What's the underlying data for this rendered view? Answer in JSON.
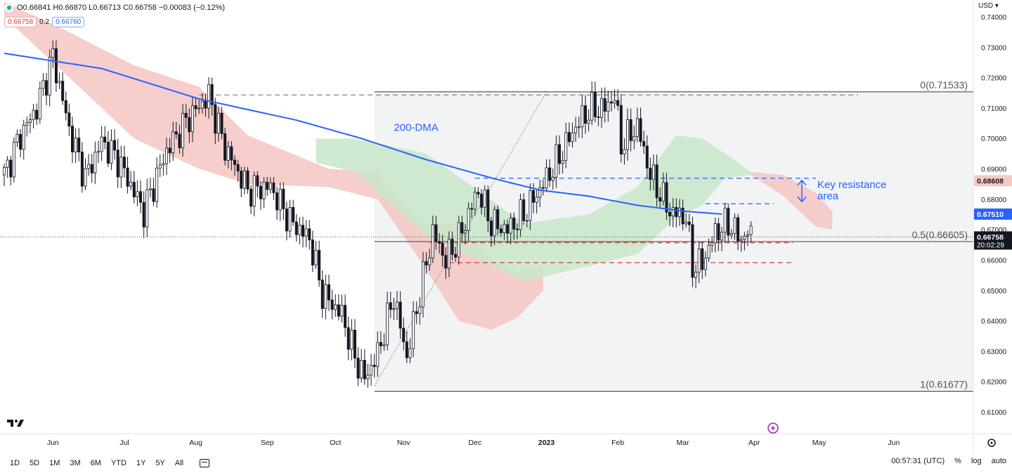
{
  "header": {
    "ohlc_text": "O0.66841 H0.66870 L0.66713 C0.66758 −0.00083 (−0.12%)",
    "ind_value_1": "0.66758",
    "ind_param": "0.2",
    "ind_value_2": "0.66760",
    "currency": "USD"
  },
  "colors": {
    "candle": "#131722",
    "dma": "#2962ff",
    "cloud_bear": "#f5c6c3",
    "cloud_bull": "#c8e6c9",
    "red_dash": "#e53935",
    "blue_dash": "#2962ff",
    "fib_line": "#6b6b6b",
    "price_bg": "#131722",
    "dma_label_bg": "#2962ff",
    "cloud_label_bg": "#f7c9c5"
  },
  "chart_data": {
    "type": "candlestick",
    "y_axis": {
      "min": 0.6,
      "max": 0.745,
      "ticks": [
        "0.74000",
        "0.73000",
        "0.72000",
        "0.71000",
        "0.70000",
        "0.69000",
        "0.68000",
        "0.67000",
        "0.66000",
        "0.65000",
        "0.64000",
        "0.63000",
        "0.62000",
        "0.61000"
      ]
    },
    "x_axis": {
      "labels": [
        "Jun",
        "Jul",
        "Aug",
        "Sep",
        "Oct",
        "Nov",
        "Dec",
        "2023",
        "Feb",
        "Mar",
        "Apr",
        "May",
        "Jun"
      ],
      "label_bars": [
        15,
        37,
        59,
        81,
        102,
        123,
        145,
        167,
        189,
        209,
        231,
        251,
        274
      ]
    },
    "series_anchors": {
      "price_close": [
        [
          0,
          0.688
        ],
        [
          5,
          0.701
        ],
        [
          10,
          0.71
        ],
        [
          15,
          0.727
        ],
        [
          20,
          0.703
        ],
        [
          25,
          0.687
        ],
        [
          30,
          0.699
        ],
        [
          35,
          0.693
        ],
        [
          43,
          0.676
        ],
        [
          50,
          0.696
        ],
        [
          57,
          0.707
        ],
        [
          63,
          0.714
        ],
        [
          68,
          0.697
        ],
        [
          75,
          0.683
        ],
        [
          82,
          0.684
        ],
        [
          88,
          0.673
        ],
        [
          94,
          0.667
        ],
        [
          98,
          0.649
        ],
        [
          104,
          0.642
        ],
        [
          108,
          0.628
        ],
        [
          111,
          0.621
        ],
        [
          115,
          0.629
        ],
        [
          120,
          0.648
        ],
        [
          124,
          0.628
        ],
        [
          128,
          0.649
        ],
        [
          132,
          0.669
        ],
        [
          136,
          0.66
        ],
        [
          140,
          0.667
        ],
        [
          146,
          0.683
        ],
        [
          150,
          0.672
        ],
        [
          155,
          0.67
        ],
        [
          160,
          0.675
        ],
        [
          166,
          0.685
        ],
        [
          170,
          0.692
        ],
        [
          176,
          0.704
        ],
        [
          180,
          0.709
        ],
        [
          185,
          0.71
        ],
        [
          188,
          0.714
        ],
        [
          190,
          0.698
        ],
        [
          195,
          0.704
        ],
        [
          199,
          0.688
        ],
        [
          205,
          0.676
        ],
        [
          210,
          0.674
        ],
        [
          212,
          0.658
        ],
        [
          215,
          0.659
        ],
        [
          219,
          0.669
        ],
        [
          223,
          0.672
        ],
        [
          227,
          0.667
        ],
        [
          229,
          0.669
        ],
        [
          230,
          0.6676
        ]
      ],
      "dma": [
        [
          0,
          0.728
        ],
        [
          30,
          0.723
        ],
        [
          60,
          0.713
        ],
        [
          90,
          0.706
        ],
        [
          110,
          0.7
        ],
        [
          130,
          0.693
        ],
        [
          150,
          0.687
        ],
        [
          165,
          0.683
        ],
        [
          180,
          0.681
        ],
        [
          195,
          0.678
        ],
        [
          210,
          0.676
        ],
        [
          221,
          0.6751
        ],
        [
          230,
          0.6751
        ]
      ],
      "cloud_red": [
        [
          0,
          0.745,
          0.74
        ],
        [
          20,
          0.735,
          0.72
        ],
        [
          40,
          0.724,
          0.7
        ],
        [
          60,
          0.717,
          0.69
        ],
        [
          75,
          0.701,
          0.685
        ],
        [
          100,
          0.69,
          0.684
        ],
        [
          115,
          0.689,
          0.68
        ],
        [
          128,
          0.672,
          0.66
        ],
        [
          140,
          0.672,
          0.64
        ],
        [
          150,
          0.66,
          0.637
        ],
        [
          158,
          0.656,
          0.641
        ],
        [
          166,
          0.658,
          0.65
        ]
      ],
      "cloud_green": [
        [
          96,
          0.7,
          0.692
        ],
        [
          108,
          0.7,
          0.689
        ],
        [
          130,
          0.695,
          0.668
        ],
        [
          160,
          0.672,
          0.653
        ],
        [
          180,
          0.675,
          0.658
        ],
        [
          195,
          0.684,
          0.662
        ],
        [
          207,
          0.701,
          0.674
        ],
        [
          215,
          0.7,
          0.678
        ],
        [
          222,
          0.695,
          0.687
        ],
        [
          230,
          0.689,
          0.688
        ]
      ],
      "cloud_red_forward": [
        [
          230,
          0.689,
          0.688
        ],
        [
          240,
          0.688,
          0.681
        ],
        [
          250,
          0.682,
          0.671
        ],
        [
          255,
          0.676,
          0.67
        ]
      ]
    },
    "last_price": 0.66758,
    "countdown": "20:02:29",
    "dma_last": 0.6751,
    "cloud_label_value": 0.68608,
    "fib_levels": [
      {
        "label": "0(0.71533)",
        "value": 0.71533
      },
      {
        "label": "0.5(0.66605)",
        "value": 0.66605
      },
      {
        "label": "1(0.61677)",
        "value": 0.61677
      }
    ],
    "annotations": {
      "dma_label": "200-DMA",
      "resistance_label_1": "Key resistance",
      "resistance_label_2": "area"
    },
    "horizontal_dashes": [
      {
        "style": "red",
        "value": 0.6657,
        "from_bar": 131,
        "to_bar": 243
      },
      {
        "style": "red",
        "value": 0.6591,
        "from_bar": 137,
        "to_bar": 243
      },
      {
        "style": "blue",
        "value": 0.6869,
        "from_bar": 145,
        "to_bar": 250
      },
      {
        "style": "blue",
        "value": 0.6785,
        "from_bar": 216,
        "to_bar": 237
      },
      {
        "style": "gray",
        "value": 0.7143,
        "from_bar": 60,
        "to_bar": 263
      }
    ]
  },
  "bottom": {
    "ranges": [
      "1D",
      "5D",
      "1M",
      "3M",
      "6M",
      "YTD",
      "1Y",
      "5Y",
      "All"
    ],
    "clock": "00:57:31 (UTC)",
    "percent": "%",
    "log": "log",
    "auto": "auto"
  }
}
